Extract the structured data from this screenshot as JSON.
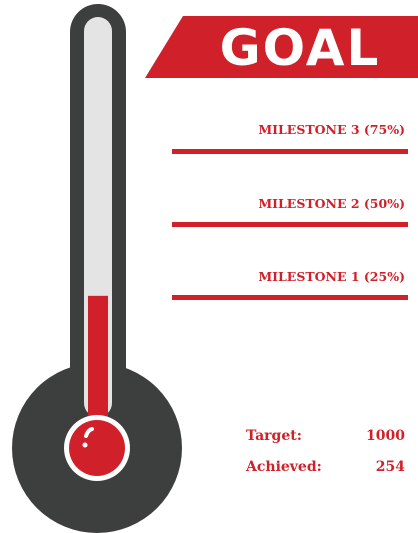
{
  "title": "GOAL",
  "milestones": [
    {
      "label": "MILESTONE 3 (75%)"
    },
    {
      "label": "MILESTONE 2 (50%)"
    },
    {
      "label": "MILESTONE 1 (25%)"
    }
  ],
  "target": {
    "label": "Target:",
    "value": 1000
  },
  "achieved": {
    "label": "Achieved:",
    "value": 254
  }
}
